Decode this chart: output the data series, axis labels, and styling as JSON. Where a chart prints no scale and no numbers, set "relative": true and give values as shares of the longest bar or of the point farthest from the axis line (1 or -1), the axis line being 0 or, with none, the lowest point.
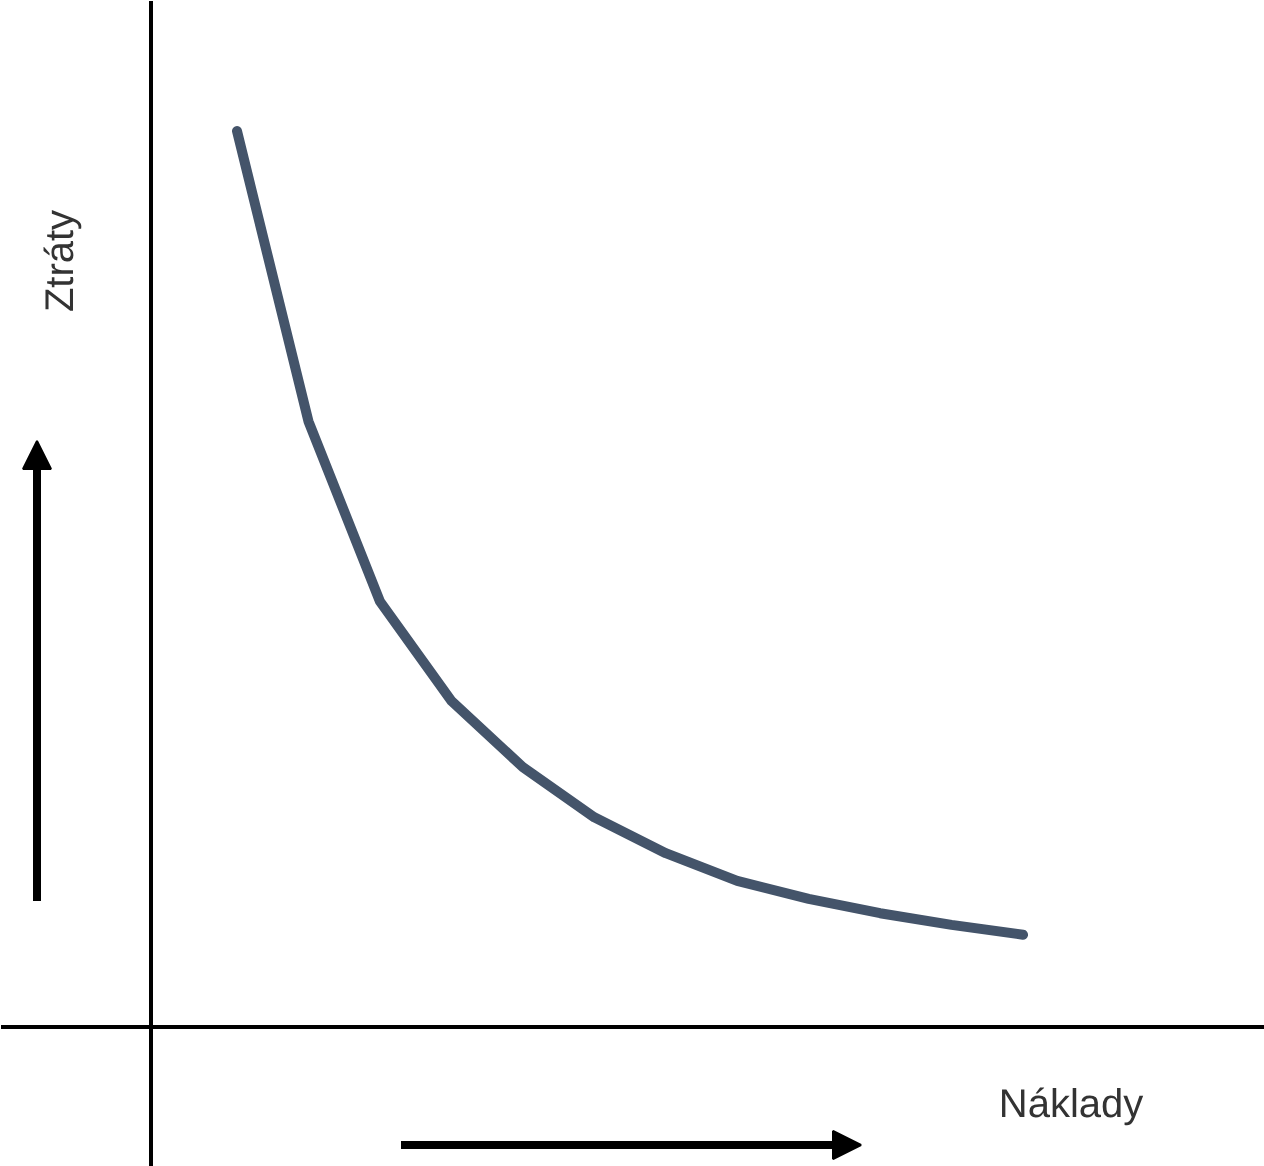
{
  "chart_data": {
    "type": "line",
    "relative": true,
    "xlabel": "Náklady",
    "ylabel": "Ztráty",
    "categories": [
      null,
      null,
      null,
      null,
      null,
      null,
      null,
      null,
      null,
      null,
      null,
      null
    ],
    "series": [
      {
        "color": "#44546a",
        "values": [
          1,
          0.676,
          0.475,
          0.364,
          0.29,
          0.234,
          0.194,
          0.163,
          0.143,
          0.127,
          0.114,
          0.103
        ]
      }
    ],
    "grid": false,
    "legend": false,
    "marker": "none",
    "line_style": "solid"
  }
}
